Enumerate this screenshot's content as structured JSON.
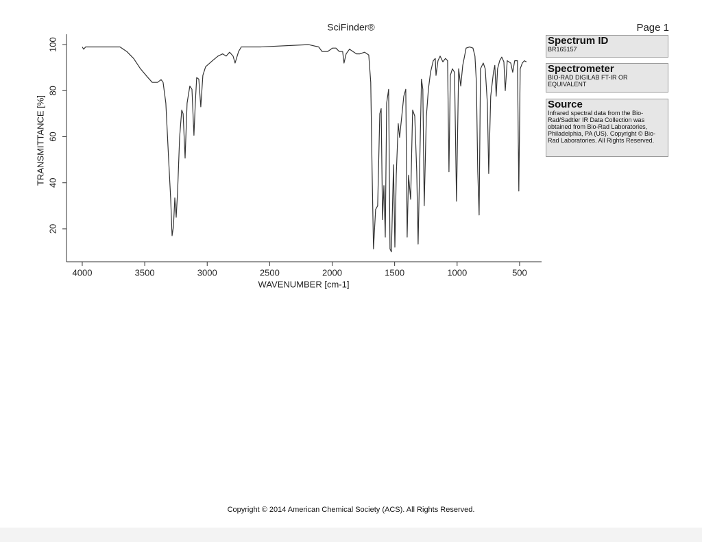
{
  "header": {
    "title": "SciFinder®",
    "page": "Page 1"
  },
  "sidebar": [
    {
      "heading": "Spectrum ID",
      "body": "BR165157"
    },
    {
      "heading": "Spectrometer",
      "body": "BIO-RAD DIGILAB FT-IR OR EQUIVALENT"
    },
    {
      "heading": "Source",
      "body": "Infrared spectral data from the Bio-Rad/Sadtler IR Data Collection was obtained from Bio-Rad Laboratories, Philadelphia, PA (US). Copyright © Bio-Rad Laboratories. All Rights Reserved."
    }
  ],
  "footer": "Copyright © 2014  American Chemical Society (ACS). All Rights Reserved.",
  "chart_data": {
    "type": "line",
    "x_label": "WAVENUMBER [cm-1]",
    "y_label": "TRANSMITTANCE [%]",
    "color": "#333333",
    "xlim": [
      4126,
      324
    ],
    "ylim": [
      5.7,
      104.5
    ],
    "xticks": [
      4000,
      3500,
      3000,
      2500,
      2000,
      1500,
      1000,
      500
    ],
    "yticks": [
      20,
      40,
      60,
      80,
      100
    ],
    "x": [
      4000,
      3989,
      3973,
      3698,
      3643,
      3589,
      3534,
      3479,
      3440,
      3397,
      3369,
      3353,
      3331,
      3309,
      3292,
      3281,
      3270,
      3259,
      3248,
      3237,
      3221,
      3204,
      3193,
      3177,
      3161,
      3139,
      3122,
      3106,
      3095,
      3084,
      3067,
      3051,
      3035,
      3013,
      2958,
      2914,
      2876,
      2848,
      2821,
      2793,
      2777,
      2749,
      2727,
      2574,
      2190,
      2108,
      2080,
      2036,
      1998,
      1970,
      1943,
      1916,
      1905,
      1888,
      1861,
      1806,
      1778,
      1740,
      1707,
      1691,
      1680,
      1669,
      1652,
      1636,
      1619,
      1608,
      1597,
      1586,
      1575,
      1564,
      1548,
      1537,
      1526,
      1509,
      1498,
      1487,
      1471,
      1460,
      1443,
      1427,
      1411,
      1400,
      1389,
      1372,
      1356,
      1339,
      1323,
      1312,
      1301,
      1285,
      1274,
      1263,
      1246,
      1230,
      1213,
      1191,
      1175,
      1169,
      1153,
      1136,
      1114,
      1093,
      1076,
      1065,
      1054,
      1038,
      1021,
      1005,
      988,
      971,
      955,
      944,
      928,
      900,
      873,
      857,
      846,
      835,
      824,
      813,
      791,
      775,
      758,
      747,
      731,
      709,
      698,
      687,
      676,
      659,
      643,
      626,
      615,
      599,
      571,
      555,
      539,
      517,
      506,
      495,
      478,
      462,
      445
    ],
    "values": [
      99,
      98,
      99,
      99,
      97,
      94,
      89.5,
      86,
      83.6,
      83.6,
      84.8,
      83.6,
      74.6,
      50.7,
      32.8,
      17,
      21,
      33.4,
      25,
      35.8,
      59.7,
      71.6,
      70,
      50.7,
      74.6,
      82,
      80.6,
      60.6,
      74.6,
      85.7,
      85,
      73,
      86.6,
      90.4,
      93,
      95,
      96,
      95,
      96.7,
      95,
      92,
      97,
      99,
      99,
      100,
      99,
      97,
      97,
      98.5,
      98.5,
      97,
      97,
      92,
      96,
      98,
      96,
      96,
      96.7,
      95.5,
      83.6,
      44.8,
      11.3,
      28.4,
      30,
      70,
      72.2,
      24,
      38.8,
      16.4,
      74.6,
      80.6,
      11.3,
      10,
      47.8,
      12,
      43.3,
      65.7,
      59.7,
      68.7,
      77.6,
      80.6,
      16.4,
      43.3,
      32.8,
      71.6,
      69,
      44.8,
      13.4,
      43.3,
      85,
      80.6,
      30,
      68.7,
      80.6,
      88,
      93,
      94,
      86.6,
      93,
      95,
      92.5,
      94,
      93,
      44.8,
      86.6,
      89.5,
      88,
      32,
      89.5,
      82,
      91,
      94,
      98.5,
      99,
      98.5,
      95,
      83.6,
      44.8,
      26,
      89.5,
      92,
      89.5,
      74.6,
      44,
      77.6,
      88,
      91,
      77.6,
      89.5,
      93,
      94.6,
      92.5,
      80,
      93,
      92,
      88,
      93,
      93,
      36.4,
      89.5,
      92,
      93,
      92.5
    ]
  }
}
